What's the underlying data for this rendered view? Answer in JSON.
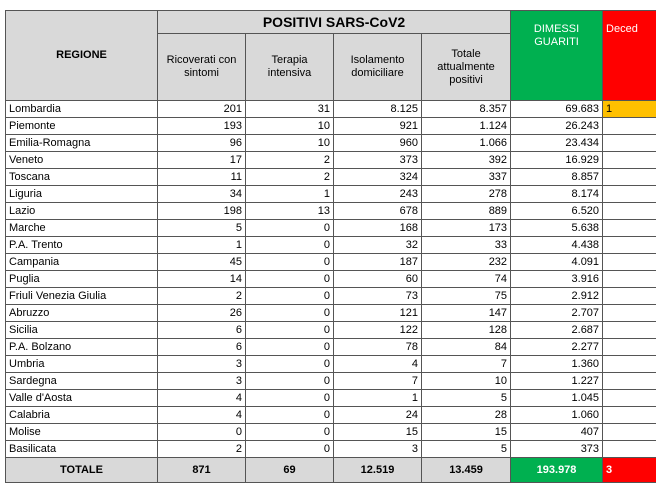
{
  "table": {
    "title": "POSITIVI SARS-CoV2",
    "headers": [
      "REGIONE",
      "Ricoverati con sintomi",
      "Terapia intensiva",
      "Isolamento domiciliare",
      "Totale attualmente positivi",
      "DIMESSI GUARITI",
      "Deced"
    ],
    "rows": [
      [
        "Lombardia",
        "201",
        "31",
        "8.125",
        "8.357",
        "69.683",
        "1"
      ],
      [
        "Piemonte",
        "193",
        "10",
        "921",
        "1.124",
        "26.243",
        null
      ],
      [
        "Emilia-Romagna",
        "96",
        "10",
        "960",
        "1.066",
        "23.434",
        null
      ],
      [
        "Veneto",
        "17",
        "2",
        "373",
        "392",
        "16.929",
        null
      ],
      [
        "Toscana",
        "11",
        "2",
        "324",
        "337",
        "8.857",
        null
      ],
      [
        "Liguria",
        "34",
        "1",
        "243",
        "278",
        "8.174",
        null
      ],
      [
        "Lazio",
        "198",
        "13",
        "678",
        "889",
        "6.520",
        null
      ],
      [
        "Marche",
        "5",
        "0",
        "168",
        "173",
        "5.638",
        null
      ],
      [
        "P.A. Trento",
        "1",
        "0",
        "32",
        "33",
        "4.438",
        null
      ],
      [
        "Campania",
        "45",
        "0",
        "187",
        "232",
        "4.091",
        null
      ],
      [
        "Puglia",
        "14",
        "0",
        "60",
        "74",
        "3.916",
        null
      ],
      [
        "Friuli Venezia Giulia",
        "2",
        "0",
        "73",
        "75",
        "2.912",
        null
      ],
      [
        "Abruzzo",
        "26",
        "0",
        "121",
        "147",
        "2.707",
        null
      ],
      [
        "Sicilia",
        "6",
        "0",
        "122",
        "128",
        "2.687",
        null
      ],
      [
        "P.A. Bolzano",
        "6",
        "0",
        "78",
        "84",
        "2.277",
        null
      ],
      [
        "Umbria",
        "3",
        "0",
        "4",
        "7",
        "1.360",
        null
      ],
      [
        "Sardegna",
        "3",
        "0",
        "7",
        "10",
        "1.227",
        null
      ],
      [
        "Valle d'Aosta",
        "4",
        "0",
        "1",
        "5",
        "1.045",
        null
      ],
      [
        "Calabria",
        "4",
        "0",
        "24",
        "28",
        "1.060",
        null
      ],
      [
        "Molise",
        "0",
        "0",
        "15",
        "15",
        "407",
        null
      ],
      [
        "Basilicata",
        "2",
        "0",
        "3",
        "5",
        "373",
        null
      ]
    ],
    "total": [
      "TOTALE",
      "871",
      "69",
      "12.519",
      "13.459",
      "193.978",
      "3"
    ]
  }
}
